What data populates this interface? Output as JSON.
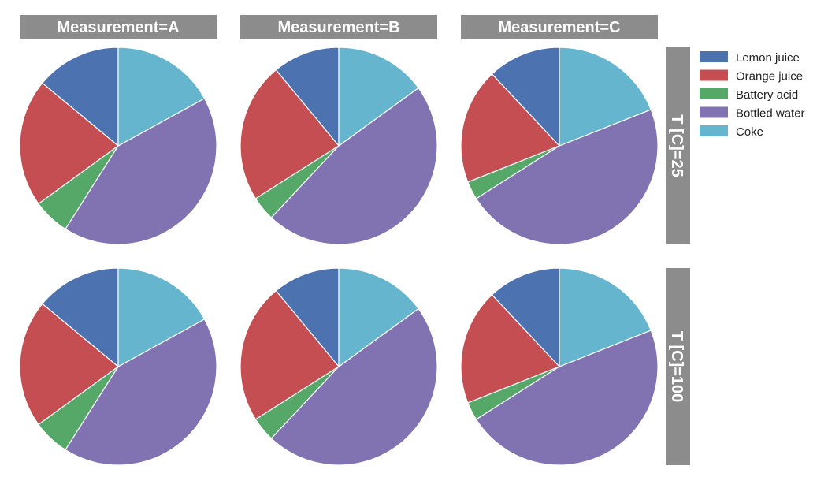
{
  "chart_data": {
    "type": "pie",
    "facet_columns": {
      "variable": "Measurement",
      "values": [
        "A",
        "B",
        "C"
      ],
      "labels": [
        "Measurement=A",
        "Measurement=B",
        "Measurement=C"
      ]
    },
    "facet_rows": {
      "variable": "T [C]",
      "values": [
        25,
        100
      ],
      "labels": [
        "T [C]=25",
        "T [C]=100"
      ]
    },
    "legend": {
      "position": "top-right",
      "entries": [
        "Lemon juice",
        "Orange juice",
        "Battery acid",
        "Bottled water",
        "Coke"
      ]
    },
    "series_colors": {
      "Lemon juice": "#4c72b0",
      "Orange juice": "#c44e52",
      "Battery acid": "#55a868",
      "Bottled water": "#8172b2",
      "Coke": "#64b5cd"
    },
    "start_angle_deg": 90,
    "direction": "counterclockwise",
    "panels": [
      {
        "row": "T [C]=25",
        "col": "Measurement=A",
        "values": {
          "Lemon juice": 14,
          "Orange juice": 21,
          "Battery acid": 6,
          "Bottled water": 42,
          "Coke": 17
        }
      },
      {
        "row": "T [C]=25",
        "col": "Measurement=B",
        "values": {
          "Lemon juice": 11,
          "Orange juice": 23,
          "Battery acid": 4,
          "Bottled water": 47,
          "Coke": 15
        }
      },
      {
        "row": "T [C]=25",
        "col": "Measurement=C",
        "values": {
          "Lemon juice": 12,
          "Orange juice": 19,
          "Battery acid": 3,
          "Bottled water": 47,
          "Coke": 19
        }
      },
      {
        "row": "T [C]=100",
        "col": "Measurement=A",
        "values": {
          "Lemon juice": 14,
          "Orange juice": 21,
          "Battery acid": 6,
          "Bottled water": 42,
          "Coke": 17
        }
      },
      {
        "row": "T [C]=100",
        "col": "Measurement=B",
        "values": {
          "Lemon juice": 11,
          "Orange juice": 23,
          "Battery acid": 4,
          "Bottled water": 47,
          "Coke": 15
        }
      },
      {
        "row": "T [C]=100",
        "col": "Measurement=C",
        "values": {
          "Lemon juice": 12,
          "Orange juice": 19,
          "Battery acid": 3,
          "Bottled water": 47,
          "Coke": 19
        }
      }
    ]
  }
}
